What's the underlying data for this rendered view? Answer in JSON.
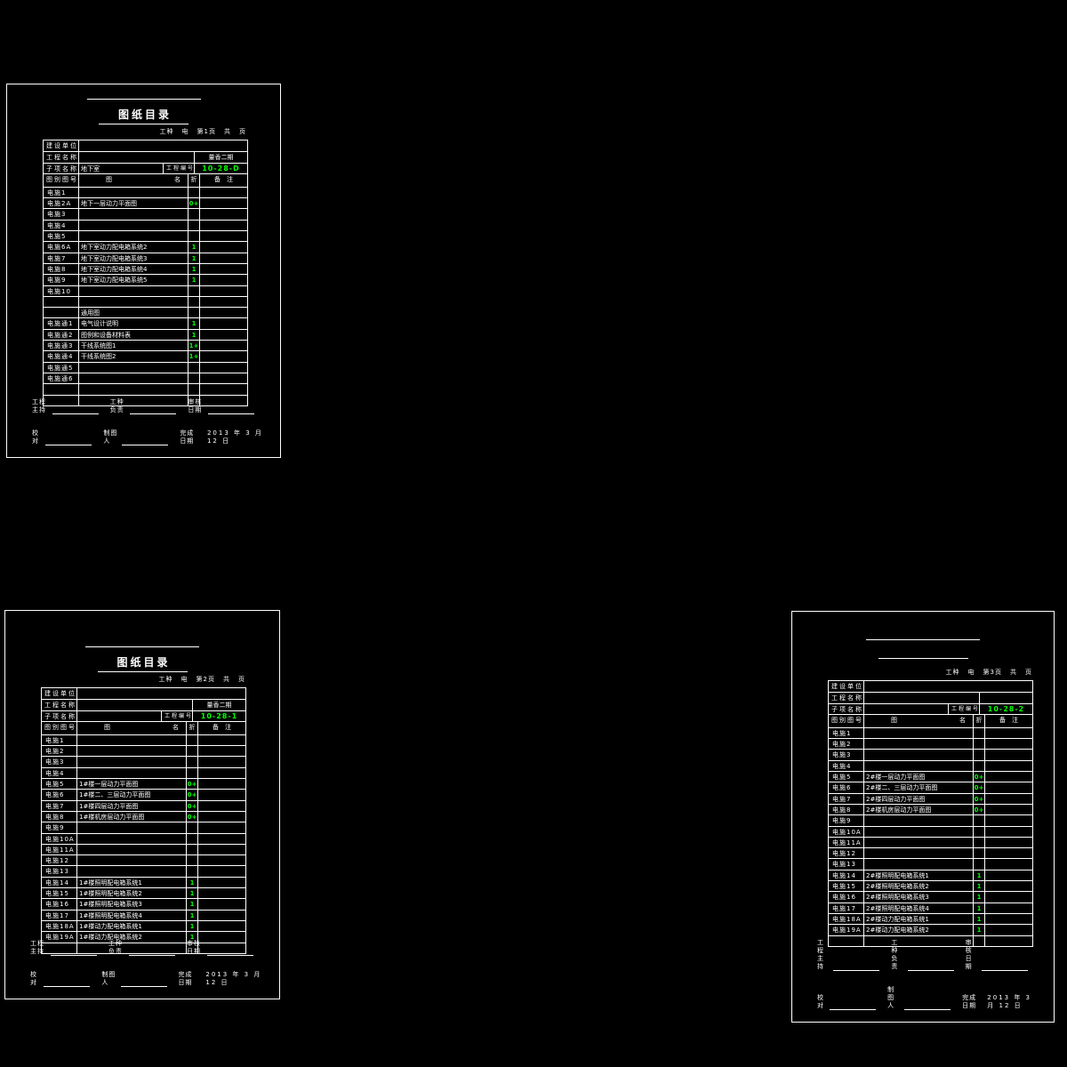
{
  "colors": {
    "background": "#000000",
    "ink": "#ffffff",
    "accent": "#00ff00"
  },
  "field_labels": {
    "owner": "建设单位",
    "project": "工程名称",
    "sub": "子项名称",
    "no": "工程编号"
  },
  "columns": {
    "id": "图别图号",
    "name_l": "图",
    "name_r": "名",
    "fold": "折",
    "remark": "备注"
  },
  "footer": {
    "line1": [
      {
        "label": "工程主持"
      },
      {
        "label": "工种负责"
      },
      {
        "label": "审核日期"
      }
    ],
    "line2": [
      {
        "label": "校对"
      },
      {
        "label": "制图人"
      },
      {
        "label": "完成日期"
      }
    ],
    "date": "2013 年 3 月 12 日"
  },
  "sheets": [
    {
      "title": "图纸目录",
      "page_info": [
        "工种",
        "电",
        "第1页",
        "共",
        "页"
      ],
      "project_side": "量香二期",
      "sub": "地下室",
      "no": "10-28-D",
      "rows": [
        [
          "电施1",
          "",
          ""
        ],
        [
          "电施2A",
          "地下一层动力平面图",
          "0+"
        ],
        [
          "电施3",
          "",
          ""
        ],
        [
          "电施4",
          "",
          ""
        ],
        [
          "电施5",
          "",
          ""
        ],
        [
          "电施6A",
          "地下室动力配电箱系统2",
          "1"
        ],
        [
          "电施7",
          "地下室动力配电箱系统3",
          "1"
        ],
        [
          "电施8",
          "地下室动力配电箱系统4",
          "1"
        ],
        [
          "电施9",
          "地下室动力配电箱系统5",
          "1"
        ],
        [
          "电施10",
          "",
          ""
        ],
        [
          "",
          "",
          ""
        ],
        [
          "",
          "通用图",
          ""
        ],
        [
          "电施通1",
          "电气设计说明",
          "1"
        ],
        [
          "电施通2",
          "图例和设备材料表",
          "1"
        ],
        [
          "电施通3",
          "干线系统图1",
          "1+"
        ],
        [
          "电施通4",
          "干线系统图2",
          "1+"
        ],
        [
          "电施通5",
          "",
          ""
        ],
        [
          "电施通6",
          "",
          ""
        ],
        [
          "",
          "",
          ""
        ],
        [
          "",
          "",
          ""
        ]
      ]
    },
    {
      "title": "图纸目录",
      "page_info": [
        "工种",
        "电",
        "第2页",
        "共",
        "页"
      ],
      "project_side": "量香二期",
      "sub": "",
      "no": "10-28-1",
      "rows": [
        [
          "电施1",
          "",
          ""
        ],
        [
          "电施2",
          "",
          ""
        ],
        [
          "电施3",
          "",
          ""
        ],
        [
          "电施4",
          "",
          ""
        ],
        [
          "电施5",
          "1#楼一层动力平面图",
          "0+"
        ],
        [
          "电施6",
          "1#楼二、三层动力平面图",
          "0+"
        ],
        [
          "电施7",
          "1#楼四层动力平面图",
          "0+"
        ],
        [
          "电施8",
          "1#楼机房层动力平面图",
          "0+"
        ],
        [
          "电施9",
          "",
          ""
        ],
        [
          "电施10A",
          "",
          ""
        ],
        [
          "电施11A",
          "",
          ""
        ],
        [
          "电施12",
          "",
          ""
        ],
        [
          "电施13",
          "",
          ""
        ],
        [
          "电施14",
          "1#楼照明配电箱系统1",
          "1"
        ],
        [
          "电施15",
          "1#楼照明配电箱系统2",
          "1"
        ],
        [
          "电施16",
          "1#楼照明配电箱系统3",
          "1"
        ],
        [
          "电施17",
          "1#楼照明配电箱系统4",
          "1"
        ],
        [
          "电施18A",
          "1#楼动力配电箱系统1",
          "1"
        ],
        [
          "电施19A",
          "1#楼动力配电箱系统2",
          "1"
        ],
        [
          "",
          "",
          ""
        ]
      ]
    },
    {
      "title": "",
      "page_info": [
        "工种",
        "电",
        "第3页",
        "共",
        "页"
      ],
      "project_side": "",
      "sub": "",
      "no": "10-28-2",
      "rows": [
        [
          "电施1",
          "",
          ""
        ],
        [
          "电施2",
          "",
          ""
        ],
        [
          "电施3",
          "",
          ""
        ],
        [
          "电施4",
          "",
          ""
        ],
        [
          "电施5",
          "2#楼一层动力平面图",
          "0+"
        ],
        [
          "电施6",
          "2#楼二、三层动力平面图",
          "0+"
        ],
        [
          "电施7",
          "2#楼四层动力平面图",
          "0+"
        ],
        [
          "电施8",
          "2#楼机房层动力平面图",
          "0+"
        ],
        [
          "电施9",
          "",
          ""
        ],
        [
          "电施10A",
          "",
          ""
        ],
        [
          "电施11A",
          "",
          ""
        ],
        [
          "电施12",
          "",
          ""
        ],
        [
          "电施13",
          "",
          ""
        ],
        [
          "电施14",
          "2#楼照明配电箱系统1",
          "1"
        ],
        [
          "电施15",
          "2#楼照明配电箱系统2",
          "1"
        ],
        [
          "电施16",
          "2#楼照明配电箱系统3",
          "1"
        ],
        [
          "电施17",
          "2#楼照明配电箱系统4",
          "1"
        ],
        [
          "电施18A",
          "2#楼动力配电箱系统1",
          "1"
        ],
        [
          "电施19A",
          "2#楼动力配电箱系统2",
          "1"
        ],
        [
          "",
          "",
          ""
        ]
      ]
    }
  ]
}
